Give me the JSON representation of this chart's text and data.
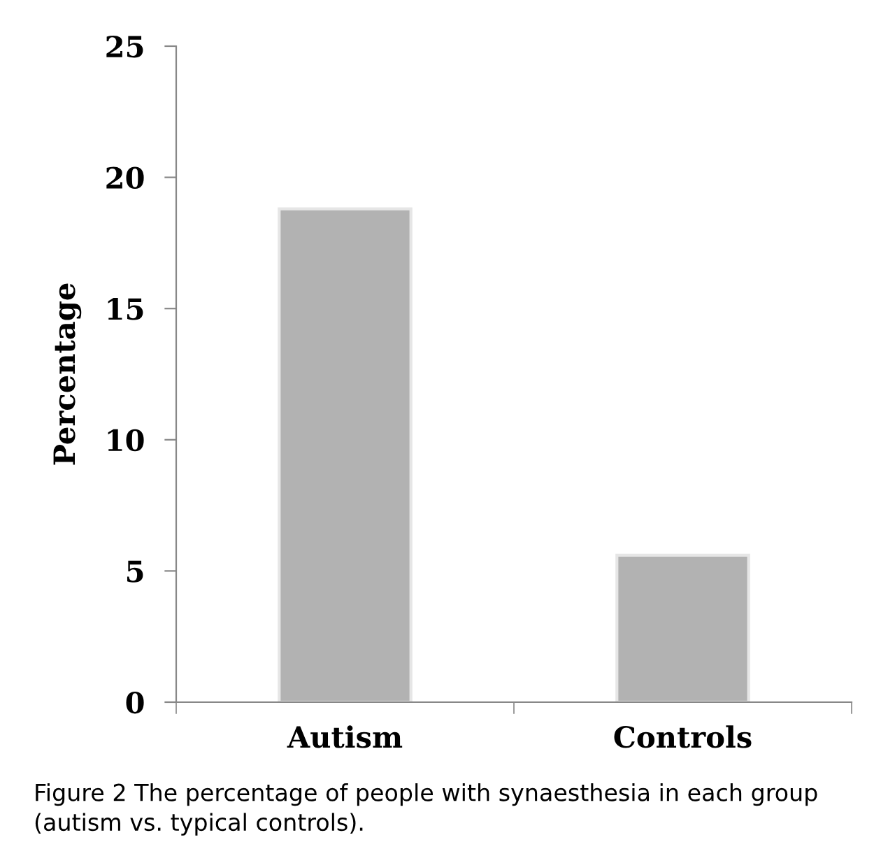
{
  "chart_data": {
    "type": "bar",
    "categories": [
      "Autism",
      "Controls"
    ],
    "values": [
      18.8,
      5.6
    ],
    "color": "#b2b2b2",
    "ylabel": "Percentage",
    "ylim": [
      0,
      25
    ],
    "yticks": [
      0,
      5,
      10,
      15,
      20,
      25
    ],
    "grid": false,
    "legend": false,
    "annotations": [
      "Figure 2 The percentage of people with synaesthesia in each group (autism vs. typical controls)."
    ]
  }
}
